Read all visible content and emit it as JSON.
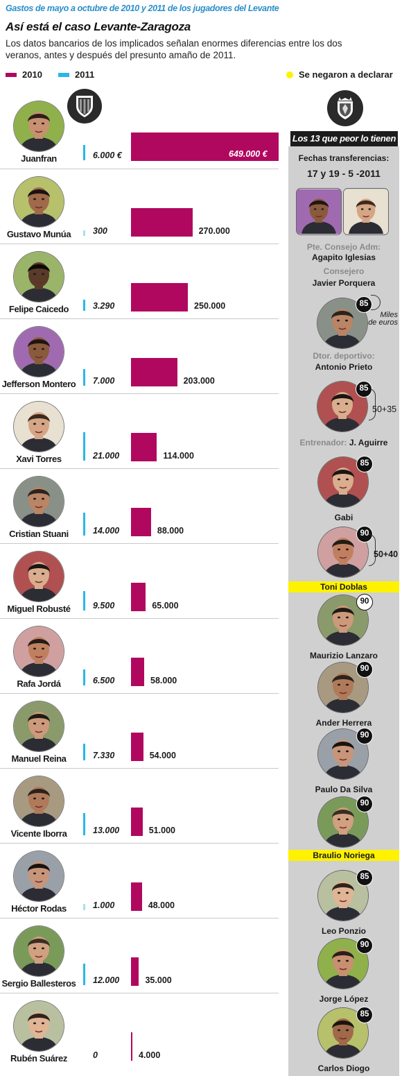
{
  "header": {
    "kicker": "Gastos de mayo a octubre de 2010 y 2011 de los jugadores del Levante",
    "title": "Así está el caso Levante-Zaragoza",
    "subtitle": "Los datos bancarios de los implicados señalan enormes diferencias entre los dos veranos, antes y después del presunto amaño de 2011."
  },
  "legend": {
    "label_2010": "2010",
    "label_2011": "2011",
    "label_declined": "Se negaron a declarar"
  },
  "colors": {
    "y2010": "#b0085f",
    "y2011": "#29b7e8",
    "declined": "#fff200",
    "panel": "#d0d0d0"
  },
  "icons": {
    "levante_crest": "levante-crest-icon",
    "zaragoza_crest": "zaragoza-crest-icon"
  },
  "chart_data": {
    "type": "bar",
    "categories": [
      "Juanfran",
      "Gustavo Munúa",
      "Felipe Caicedo",
      "Jefferson Montero",
      "Xavi Torres",
      "Cristian Stuani",
      "Miguel Robusté",
      "Rafa Jordá",
      "Manuel Reina",
      "Vicente Iborra",
      "Héctor Rodas",
      "Sergio Ballesteros",
      "Rubén Suárez"
    ],
    "series": [
      {
        "name": "2010",
        "values": [
          649000,
          270000,
          250000,
          203000,
          114000,
          88000,
          65000,
          58000,
          54000,
          51000,
          48000,
          35000,
          4000
        ]
      },
      {
        "name": "2011",
        "values": [
          6000,
          300,
          3290,
          7000,
          21000,
          14000,
          9500,
          6500,
          7330,
          13000,
          1000,
          12000,
          0
        ]
      }
    ],
    "labels_2010": [
      "649.000 €",
      "270.000",
      "250.000",
      "203.000",
      "114.000",
      "88.000",
      "65.000",
      "58.000",
      "54.000",
      "51.000",
      "48.000",
      "35.000",
      "4.000"
    ],
    "labels_2011": [
      "6.000 €",
      "300",
      "3.290",
      "7.000",
      "21.000",
      "14.000",
      "9.500",
      "6.500",
      "7.330",
      "13.000",
      "1.000",
      "12.000",
      "0"
    ],
    "xlabel": "",
    "ylabel": "",
    "grid": false,
    "legend_position": "top-left"
  },
  "zaragoza": {
    "panel_title": "Los 13 que peor lo tienen",
    "transfers_label": "Fechas transferencias:",
    "transfers_dates": "17 y 19 - 5 -2011",
    "role_president": "Pte. Consejo Adm:",
    "name_president": "Agapito Iglesias",
    "role_adviser": "Consejero",
    "name_adviser": "Javier Porquera",
    "units_note_1": "Miles",
    "units_note_2": "de euros",
    "role_director": "Dtor. deportivo:",
    "name_director": "Antonio Prieto",
    "role_coach": "Entrenador:",
    "name_coach": "J. Aguirre",
    "prieto_amount": "85",
    "aguirre_amount": "85",
    "aguirre_split": "50+35",
    "players": [
      {
        "name": "Gabi",
        "amount": "85"
      },
      {
        "name": "Toni Doblas",
        "amount": "90",
        "split": "50+40"
      },
      {
        "name": "Maurizio Lanzaro",
        "amount": "90"
      },
      {
        "name": "Ander Herrera",
        "amount": "90"
      },
      {
        "name": "Paulo Da Silva",
        "amount": "90"
      },
      {
        "name": "Braulio Noriega",
        "amount": "90"
      },
      {
        "name": "Leo Ponzio",
        "amount": "85"
      },
      {
        "name": "Jorge López",
        "amount": "90"
      },
      {
        "name": "Carlos Diogo",
        "amount": "85"
      }
    ]
  }
}
